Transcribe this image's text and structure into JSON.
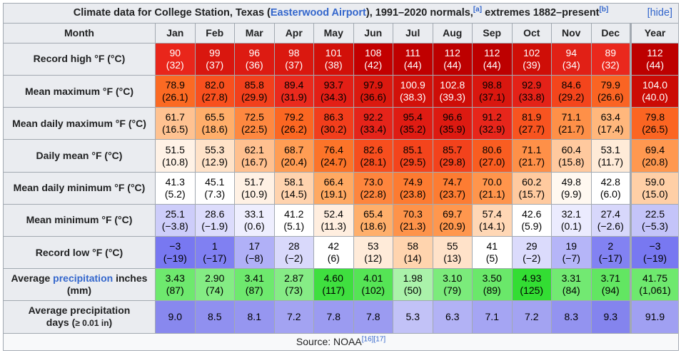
{
  "caption": {
    "prefix": "Climate data for College Station, Texas (",
    "airport_link": "Easterwood Airport",
    "middle": "), 1991–2020 normals,",
    "note_a": "[a]",
    "suffix": " extremes 1882–present",
    "note_b": "[b]",
    "hide": "[hide]"
  },
  "header": {
    "month": "Month",
    "months": [
      "Jan",
      "Feb",
      "Mar",
      "Apr",
      "May",
      "Jun",
      "Jul",
      "Aug",
      "Sep",
      "Oct",
      "Nov",
      "Dec",
      "Year"
    ]
  },
  "rows": [
    {
      "label": "Record high °F (°C)",
      "cells": [
        {
          "v": "90",
          "s": "(32)",
          "bg": "#e9261b",
          "fg": "#ffffff"
        },
        {
          "v": "99",
          "s": "(37)",
          "bg": "#d9170f",
          "fg": "#ffffff"
        },
        {
          "v": "96",
          "s": "(36)",
          "bg": "#dd1b12",
          "fg": "#ffffff"
        },
        {
          "v": "98",
          "s": "(37)",
          "bg": "#da180f",
          "fg": "#ffffff"
        },
        {
          "v": "101",
          "s": "(38)",
          "bg": "#d21009",
          "fg": "#ffffff"
        },
        {
          "v": "108",
          "s": "(42)",
          "bg": "#c30000",
          "fg": "#ffffff"
        },
        {
          "v": "111",
          "s": "(44)",
          "bg": "#c00000",
          "fg": "#ffffff"
        },
        {
          "v": "112",
          "s": "(44)",
          "bg": "#bd0000",
          "fg": "#ffffff"
        },
        {
          "v": "112",
          "s": "(44)",
          "bg": "#bd0000",
          "fg": "#ffffff"
        },
        {
          "v": "102",
          "s": "(39)",
          "bg": "#cf0e07",
          "fg": "#ffffff"
        },
        {
          "v": "94",
          "s": "(34)",
          "bg": "#e12016",
          "fg": "#ffffff"
        },
        {
          "v": "89",
          "s": "(32)",
          "bg": "#ea281d",
          "fg": "#ffffff"
        },
        {
          "v": "112",
          "s": "(44)",
          "bg": "#bd0000",
          "fg": "#ffffff"
        }
      ]
    },
    {
      "label": "Mean maximum °F (°C)",
      "cells": [
        {
          "v": "78.9",
          "s": "(26.1)",
          "bg": "#fb6a23",
          "fg": "#000000"
        },
        {
          "v": "82.0",
          "s": "(27.8)",
          "bg": "#f8501e",
          "fg": "#000000"
        },
        {
          "v": "85.8",
          "s": "(29.9)",
          "bg": "#f2401c",
          "fg": "#000000"
        },
        {
          "v": "89.4",
          "s": "(31.9)",
          "bg": "#ea2a1d",
          "fg": "#000000"
        },
        {
          "v": "93.7",
          "s": "(34.3)",
          "bg": "#e31f16",
          "fg": "#000000"
        },
        {
          "v": "97.9",
          "s": "(36.6)",
          "bg": "#db190f",
          "fg": "#000000"
        },
        {
          "v": "100.9",
          "s": "(38.3)",
          "bg": "#d2110a",
          "fg": "#ffffff"
        },
        {
          "v": "102.8",
          "s": "(39.3)",
          "bg": "#ce0d07",
          "fg": "#ffffff"
        },
        {
          "v": "98.8",
          "s": "(37.1)",
          "bg": "#d9170f",
          "fg": "#000000"
        },
        {
          "v": "92.9",
          "s": "(33.8)",
          "bg": "#e42218",
          "fg": "#000000"
        },
        {
          "v": "84.6",
          "s": "(29.2)",
          "bg": "#f4451c",
          "fg": "#000000"
        },
        {
          "v": "79.9",
          "s": "(26.6)",
          "bg": "#fa6423",
          "fg": "#000000"
        },
        {
          "v": "104.0",
          "s": "(40.0)",
          "bg": "#cb0b05",
          "fg": "#ffffff"
        }
      ]
    },
    {
      "label": "Mean daily maximum °F (°C)",
      "cells": [
        {
          "v": "61.7",
          "s": "(16.5)",
          "bg": "#ffc291",
          "fg": "#000000"
        },
        {
          "v": "65.5",
          "s": "(18.6)",
          "bg": "#ffae6a",
          "fg": "#000000"
        },
        {
          "v": "72.5",
          "s": "(22.5)",
          "bg": "#fe8840",
          "fg": "#000000"
        },
        {
          "v": "79.2",
          "s": "(26.2)",
          "bg": "#fb6722",
          "fg": "#000000"
        },
        {
          "v": "86.3",
          "s": "(30.2)",
          "bg": "#f23e1c",
          "fg": "#000000"
        },
        {
          "v": "92.2",
          "s": "(33.4)",
          "bg": "#e5241a",
          "fg": "#000000"
        },
        {
          "v": "95.4",
          "s": "(35.2)",
          "bg": "#df1c13",
          "fg": "#000000"
        },
        {
          "v": "96.6",
          "s": "(35.9)",
          "bg": "#dd1a11",
          "fg": "#000000"
        },
        {
          "v": "91.2",
          "s": "(32.9)",
          "bg": "#e7261b",
          "fg": "#000000"
        },
        {
          "v": "81.9",
          "s": "(27.7)",
          "bg": "#f85420",
          "fg": "#000000"
        },
        {
          "v": "71.1",
          "s": "(21.7)",
          "bg": "#fe9048",
          "fg": "#000000"
        },
        {
          "v": "63.4",
          "s": "(17.4)",
          "bg": "#ffb77c",
          "fg": "#000000"
        },
        {
          "v": "79.8",
          "s": "(26.5)",
          "bg": "#fb6522",
          "fg": "#000000"
        }
      ]
    },
    {
      "label": "Daily mean °F (°C)",
      "cells": [
        {
          "v": "51.5",
          "s": "(10.8)",
          "bg": "#fff2e6",
          "fg": "#000000"
        },
        {
          "v": "55.3",
          "s": "(12.9)",
          "bg": "#ffe2c8",
          "fg": "#000000"
        },
        {
          "v": "62.1",
          "s": "(16.7)",
          "bg": "#ffc08f",
          "fg": "#000000"
        },
        {
          "v": "68.7",
          "s": "(20.4)",
          "bg": "#ff9d54",
          "fg": "#000000"
        },
        {
          "v": "76.4",
          "s": "(24.7)",
          "bg": "#fc7429",
          "fg": "#000000"
        },
        {
          "v": "82.6",
          "s": "(28.1)",
          "bg": "#f74e1e",
          "fg": "#000000"
        },
        {
          "v": "85.1",
          "s": "(29.5)",
          "bg": "#f4441c",
          "fg": "#000000"
        },
        {
          "v": "85.7",
          "s": "(29.8)",
          "bg": "#f3421c",
          "fg": "#000000"
        },
        {
          "v": "80.6",
          "s": "(27.0)",
          "bg": "#f95d21",
          "fg": "#000000"
        },
        {
          "v": "71.1",
          "s": "(21.7)",
          "bg": "#fe9048",
          "fg": "#000000"
        },
        {
          "v": "60.4",
          "s": "(15.8)",
          "bg": "#ffc99e",
          "fg": "#000000"
        },
        {
          "v": "53.1",
          "s": "(11.7)",
          "bg": "#ffebd8",
          "fg": "#000000"
        },
        {
          "v": "69.4",
          "s": "(20.8)",
          "bg": "#ff9850",
          "fg": "#000000"
        }
      ]
    },
    {
      "label": "Mean daily minimum °F (°C)",
      "cells": [
        {
          "v": "41.3",
          "s": "(5.2)",
          "bg": "#ffffff",
          "fg": "#000000"
        },
        {
          "v": "45.1",
          "s": "(7.3)",
          "bg": "#ffffff",
          "fg": "#000000"
        },
        {
          "v": "51.7",
          "s": "(10.9)",
          "bg": "#fff1e4",
          "fg": "#000000"
        },
        {
          "v": "58.1",
          "s": "(14.5)",
          "bg": "#ffd3ae",
          "fg": "#000000"
        },
        {
          "v": "66.4",
          "s": "(19.1)",
          "bg": "#ffa962",
          "fg": "#000000"
        },
        {
          "v": "73.0",
          "s": "(22.8)",
          "bg": "#fe853d",
          "fg": "#000000"
        },
        {
          "v": "74.9",
          "s": "(23.8)",
          "bg": "#fd7b31",
          "fg": "#000000"
        },
        {
          "v": "74.7",
          "s": "(23.7)",
          "bg": "#fd7c32",
          "fg": "#000000"
        },
        {
          "v": "70.0",
          "s": "(21.1)",
          "bg": "#ff954c",
          "fg": "#000000"
        },
        {
          "v": "60.2",
          "s": "(15.7)",
          "bg": "#ffca9f",
          "fg": "#000000"
        },
        {
          "v": "49.8",
          "s": "(9.9)",
          "bg": "#fff8f0",
          "fg": "#000000"
        },
        {
          "v": "42.8",
          "s": "(6.0)",
          "bg": "#ffffff",
          "fg": "#000000"
        },
        {
          "v": "59.0",
          "s": "(15.0)",
          "bg": "#ffcfa6",
          "fg": "#000000"
        }
      ]
    },
    {
      "label": "Mean minimum °F (°C)",
      "cells": [
        {
          "v": "25.1",
          "s": "(−3.8)",
          "bg": "#cdcdfa",
          "fg": "#000000"
        },
        {
          "v": "28.6",
          "s": "(−1.9)",
          "bg": "#dcdcfc",
          "fg": "#000000"
        },
        {
          "v": "33.1",
          "s": "(0.6)",
          "bg": "#eeeefe",
          "fg": "#000000"
        },
        {
          "v": "41.2",
          "s": "(5.1)",
          "bg": "#ffffff",
          "fg": "#000000"
        },
        {
          "v": "52.4",
          "s": "(11.3)",
          "bg": "#ffeedf",
          "fg": "#000000"
        },
        {
          "v": "65.4",
          "s": "(18.6)",
          "bg": "#ffaf6b",
          "fg": "#000000"
        },
        {
          "v": "70.3",
          "s": "(21.3)",
          "bg": "#fe934a",
          "fg": "#000000"
        },
        {
          "v": "69.7",
          "s": "(20.9)",
          "bg": "#ff974e",
          "fg": "#000000"
        },
        {
          "v": "57.4",
          "s": "(14.1)",
          "bg": "#ffd7b5",
          "fg": "#000000"
        },
        {
          "v": "42.6",
          "s": "(5.9)",
          "bg": "#ffffff",
          "fg": "#000000"
        },
        {
          "v": "32.1",
          "s": "(0.1)",
          "bg": "#ebebfe",
          "fg": "#000000"
        },
        {
          "v": "27.4",
          "s": "(−2.6)",
          "bg": "#d7d7fb",
          "fg": "#000000"
        },
        {
          "v": "22.5",
          "s": "(−5.3)",
          "bg": "#c4c4f9",
          "fg": "#000000"
        }
      ]
    },
    {
      "label": "Record low °F (°C)",
      "cells": [
        {
          "v": "−3",
          "s": "(−19)",
          "bg": "#7878f1",
          "fg": "#000000"
        },
        {
          "v": "1",
          "s": "(−17)",
          "bg": "#8080f2",
          "fg": "#000000"
        },
        {
          "v": "17",
          "s": "(−8)",
          "bg": "#b0b0f7",
          "fg": "#000000"
        },
        {
          "v": "28",
          "s": "(−2)",
          "bg": "#d9d9fb",
          "fg": "#000000"
        },
        {
          "v": "42",
          "s": "(6)",
          "bg": "#ffffff",
          "fg": "#000000"
        },
        {
          "v": "53",
          "s": "(12)",
          "bg": "#ffebd9",
          "fg": "#000000"
        },
        {
          "v": "58",
          "s": "(14)",
          "bg": "#ffd4ae",
          "fg": "#000000"
        },
        {
          "v": "55",
          "s": "(13)",
          "bg": "#ffe2c9",
          "fg": "#000000"
        },
        {
          "v": "41",
          "s": "(5)",
          "bg": "#ffffff",
          "fg": "#000000"
        },
        {
          "v": "29",
          "s": "(−2)",
          "bg": "#dbdbfc",
          "fg": "#000000"
        },
        {
          "v": "19",
          "s": "(−7)",
          "bg": "#b5b5f8",
          "fg": "#000000"
        },
        {
          "v": "2",
          "s": "(−17)",
          "bg": "#8282f2",
          "fg": "#000000"
        },
        {
          "v": "−3",
          "s": "(−19)",
          "bg": "#7878f1",
          "fg": "#000000"
        }
      ]
    },
    {
      "label_before": "Average ",
      "label_link": "precipitation",
      "label_after": " inches (mm)",
      "cells": [
        {
          "v": "3.43",
          "s": "(87)",
          "bg": "#6ee96e",
          "fg": "#000000"
        },
        {
          "v": "2.90",
          "s": "(74)",
          "bg": "#84ec84",
          "fg": "#000000"
        },
        {
          "v": "3.41",
          "s": "(87)",
          "bg": "#6ee96e",
          "fg": "#000000"
        },
        {
          "v": "2.87",
          "s": "(73)",
          "bg": "#86ec86",
          "fg": "#000000"
        },
        {
          "v": "4.60",
          "s": "(117)",
          "bg": "#3fdf3f",
          "fg": "#000000"
        },
        {
          "v": "4.01",
          "s": "(102)",
          "bg": "#55e455",
          "fg": "#000000"
        },
        {
          "v": "1.98",
          "s": "(50)",
          "bg": "#aaf2aa",
          "fg": "#000000"
        },
        {
          "v": "3.10",
          "s": "(79)",
          "bg": "#7beb7b",
          "fg": "#000000"
        },
        {
          "v": "3.50",
          "s": "(89)",
          "bg": "#6ae86a",
          "fg": "#000000"
        },
        {
          "v": "4.93",
          "s": "(125)",
          "bg": "#33dd33",
          "fg": "#000000"
        },
        {
          "v": "3.31",
          "s": "(84)",
          "bg": "#72e972",
          "fg": "#000000"
        },
        {
          "v": "3.71",
          "s": "(94)",
          "bg": "#62e662",
          "fg": "#000000"
        },
        {
          "v": "41.75",
          "s": "(1,061)",
          "bg": "#6ee96e",
          "fg": "#000000"
        }
      ]
    },
    {
      "label_line1": "Average precipitation",
      "label_line2_a": "days (",
      "label_line2_small": "≥ 0.01 in",
      "label_line2_b": ")",
      "cells": [
        {
          "v": "9.0",
          "bg": "#8888ee",
          "fg": "#000000"
        },
        {
          "v": "8.5",
          "bg": "#9090f0",
          "fg": "#000000"
        },
        {
          "v": "8.1",
          "bg": "#9696f0",
          "fg": "#000000"
        },
        {
          "v": "7.2",
          "bg": "#a3a3f2",
          "fg": "#000000"
        },
        {
          "v": "7.8",
          "bg": "#9b9bf1",
          "fg": "#000000"
        },
        {
          "v": "7.8",
          "bg": "#9b9bf1",
          "fg": "#000000"
        },
        {
          "v": "5.3",
          "bg": "#c2c2f7",
          "fg": "#000000"
        },
        {
          "v": "6.3",
          "bg": "#b2b2f5",
          "fg": "#000000"
        },
        {
          "v": "7.1",
          "bg": "#a5a5f3",
          "fg": "#000000"
        },
        {
          "v": "7.2",
          "bg": "#a3a3f2",
          "fg": "#000000"
        },
        {
          "v": "8.3",
          "bg": "#9393f0",
          "fg": "#000000"
        },
        {
          "v": "9.3",
          "bg": "#8484ee",
          "fg": "#000000"
        },
        {
          "v": "91.9",
          "bg": "#a0a0f2",
          "fg": "#000000"
        }
      ]
    }
  ],
  "source": {
    "text": "Source: NOAA",
    "ref1": "[16]",
    "ref2": "[17]"
  }
}
